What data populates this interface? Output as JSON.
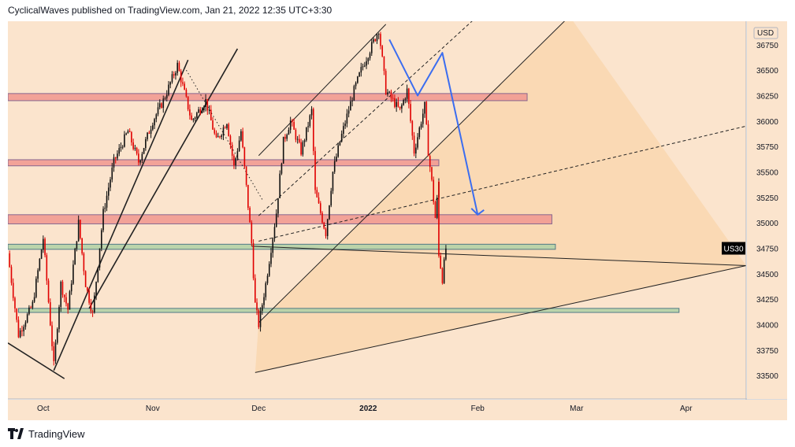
{
  "header": {
    "publisher_line": "CyclicalWaves published on TradingView.com, Jan 21, 2022 12:35 UTC+3:30"
  },
  "footer": {
    "brand": "TradingView",
    "logo_icon": "tradingview-logo-icon"
  },
  "colors": {
    "background": "#fbe4cd",
    "channel_fill": "#fad5ab",
    "resistance_zone": "#f29b93",
    "support_zone": "#b5d3a8",
    "candle": "#e00000",
    "projection": "#3b6df0",
    "last_price_bg": "#000000"
  },
  "chart_data": {
    "type": "candlestick",
    "symbol": "US30",
    "currency": "USD",
    "last_price_label": "34750",
    "x_ticks": [
      "Oct",
      "Nov",
      "Dec",
      "2022",
      "Feb",
      "Mar",
      "Apr"
    ],
    "y_ticks": [
      33500,
      33750,
      34000,
      34250,
      34500,
      34750,
      35000,
      35250,
      35500,
      35750,
      36000,
      36250,
      36500,
      36750
    ],
    "ylim": [
      33270,
      36980
    ],
    "x_range": [
      "2021-09-21",
      "2022-04-18"
    ],
    "price_path": [
      [
        "2021-09-21",
        34700
      ],
      [
        "2021-09-24",
        33900
      ],
      [
        "2021-09-28",
        34200
      ],
      [
        "2021-10-01",
        34850
      ],
      [
        "2021-10-04",
        33600
      ],
      [
        "2021-10-06",
        34400
      ],
      [
        "2021-10-08",
        34150
      ],
      [
        "2021-10-11",
        35000
      ],
      [
        "2021-10-13",
        34400
      ],
      [
        "2021-10-15",
        34100
      ],
      [
        "2021-10-18",
        35100
      ],
      [
        "2021-10-21",
        35600
      ],
      [
        "2021-10-25",
        35900
      ],
      [
        "2021-10-28",
        35600
      ],
      [
        "2021-11-01",
        36000
      ],
      [
        "2021-11-04",
        36200
      ],
      [
        "2021-11-08",
        36550
      ],
      [
        "2021-11-12",
        36000
      ],
      [
        "2021-11-16",
        36200
      ],
      [
        "2021-11-19",
        35800
      ],
      [
        "2021-11-22",
        36000
      ],
      [
        "2021-11-24",
        35550
      ],
      [
        "2021-11-26",
        35900
      ],
      [
        "2021-11-29",
        34800
      ],
      [
        "2021-11-30",
        34200
      ],
      [
        "2021-12-01",
        34000
      ],
      [
        "2021-12-03",
        34400
      ],
      [
        "2021-12-06",
        35100
      ],
      [
        "2021-12-08",
        35800
      ],
      [
        "2021-12-10",
        36000
      ],
      [
        "2021-12-13",
        35700
      ],
      [
        "2021-12-16",
        36100
      ],
      [
        "2021-12-17",
        35300
      ],
      [
        "2021-12-20",
        34900
      ],
      [
        "2021-12-22",
        35500
      ],
      [
        "2021-12-24",
        35800
      ],
      [
        "2021-12-28",
        36300
      ],
      [
        "2021-12-30",
        36500
      ],
      [
        "2022-01-04",
        36900
      ],
      [
        "2022-01-06",
        36300
      ],
      [
        "2022-01-10",
        36100
      ],
      [
        "2022-01-12",
        36300
      ],
      [
        "2022-01-14",
        35700
      ],
      [
        "2022-01-17",
        36150
      ],
      [
        "2022-01-18",
        35700
      ],
      [
        "2022-01-19",
        35400
      ],
      [
        "2022-01-20",
        35050
      ],
      [
        "2022-01-21",
        35400
      ],
      [
        "2022-01-21",
        34700
      ],
      [
        "2022-01-22",
        34450
      ],
      [
        "2022-01-23",
        34750
      ]
    ],
    "horizontal_zones": [
      {
        "kind": "resistance",
        "top": 36270,
        "bottom": 36200,
        "from": "2021-09-21",
        "to": "2022-02-15"
      },
      {
        "kind": "resistance",
        "top": 35620,
        "bottom": 35560,
        "from": "2021-09-21",
        "to": "2022-01-21"
      },
      {
        "kind": "resistance",
        "top": 35080,
        "bottom": 34990,
        "from": "2021-09-21",
        "to": "2022-02-22"
      },
      {
        "kind": "support",
        "top": 34790,
        "bottom": 34740,
        "from": "2021-09-21",
        "to": "2022-02-23"
      },
      {
        "kind": "support",
        "top": 34160,
        "bottom": 34120,
        "from": "2021-09-24",
        "to": "2022-03-30"
      }
    ],
    "trend_lines": [
      {
        "style": "solid",
        "from": [
          "2021-09-21",
          33820
        ],
        "to": [
          "2021-10-07",
          33470
        ]
      },
      {
        "style": "solid",
        "from": [
          "2021-10-04",
          33550
        ],
        "to": [
          "2021-11-11",
          36600
        ]
      },
      {
        "style": "solid",
        "from": [
          "2021-10-14",
          34160
        ],
        "to": [
          "2021-11-25",
          36710
        ]
      },
      {
        "style": "dotted",
        "from": [
          "2021-11-10",
          36530
        ],
        "to": [
          "2021-12-02",
          35230
        ]
      },
      {
        "style": "solid",
        "from": [
          "2021-11-29",
          34770
        ],
        "to": [
          "2022-04-18",
          34580
        ]
      },
      {
        "style": "solid",
        "from": [
          "2021-11-30",
          33530
        ],
        "to": [
          "2022-04-18",
          34580
        ]
      },
      {
        "style": "solid",
        "from": [
          "2021-12-01",
          34020
        ],
        "to": [
          "2022-02-27",
          37030
        ]
      },
      {
        "style": "solid",
        "from": [
          "2021-12-01",
          35660
        ],
        "to": [
          "2022-01-06",
          36950
        ]
      },
      {
        "style": "dashed",
        "from": [
          "2021-12-01",
          34820
        ],
        "to": [
          "2022-04-18",
          35950
        ]
      },
      {
        "style": "dashed",
        "from": [
          "2021-12-01",
          35070
        ],
        "to": [
          "2022-01-31",
          37000
        ]
      }
    ],
    "projection_path": [
      [
        "2022-01-07",
        36800
      ],
      [
        "2022-01-15",
        36250
      ],
      [
        "2022-01-22",
        36670
      ],
      [
        "2022-02-01",
        35080
      ]
    ]
  }
}
